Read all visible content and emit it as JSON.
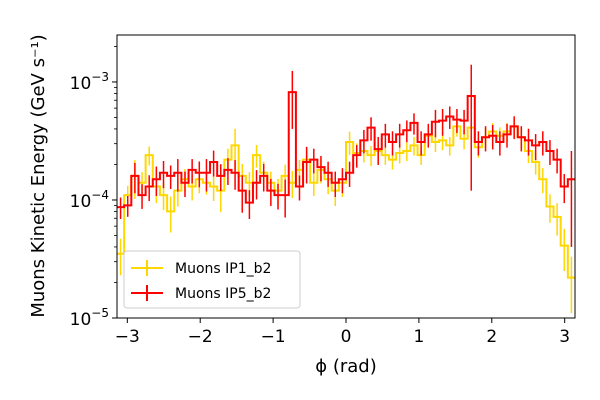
{
  "chart_data": {
    "type": "line",
    "xlabel": "ϕ (rad)",
    "ylabel": "Muons Kinetic Energy (GeV s⁻¹)",
    "y_scale": "log",
    "xlim": [
      -3.1416,
      3.1416
    ],
    "ylim": [
      1e-05,
      0.0025
    ],
    "x_ticks": [
      -3,
      -2,
      -1,
      0,
      1,
      2,
      3
    ],
    "x_tick_labels": [
      "−3",
      "−2",
      "−1",
      "0",
      "1",
      "2",
      "3"
    ],
    "y_ticks": [
      1e-05,
      0.0001,
      0.001
    ],
    "y_tick_labels": [
      {
        "base": "10",
        "exp": "−5"
      },
      {
        "base": "10",
        "exp": "−4"
      },
      {
        "base": "10",
        "exp": "−3"
      }
    ],
    "grid": false,
    "legend_position": "lower-left",
    "bins": 64,
    "series": [
      {
        "name": "Muons IP1_b2",
        "color": "#FFD700",
        "values": [
          3.5e-05,
          0.00011,
          0.00016,
          0.00014,
          0.00024,
          0.00013,
          0.00011,
          8e-05,
          0.00012,
          0.00015,
          0.00013,
          0.00015,
          0.00014,
          0.00013,
          0.00012,
          0.00022,
          0.00029,
          0.00016,
          0.00014,
          0.00024,
          0.00017,
          0.00014,
          0.00012,
          0.00016,
          0.00014,
          0.00018,
          0.00022,
          0.00014,
          0.00018,
          0.00015,
          0.00012,
          0.00014,
          0.00031,
          0.00025,
          0.00026,
          0.00024,
          0.00026,
          0.00024,
          0.00022,
          0.00025,
          0.00026,
          0.00029,
          0.00024,
          0.00035,
          0.00031,
          0.00032,
          0.00029,
          0.00042,
          0.00033,
          0.00041,
          0.00028,
          0.00034,
          0.00038,
          0.00035,
          0.00038,
          0.00042,
          0.00034,
          0.00026,
          0.00021,
          0.00015,
          8.8e-05,
          7.2e-05,
          4.1e-05,
          2.2e-05
        ],
        "errors": [
          1.2e-05,
          2.2e-05,
          5.8e-05,
          3.2e-05,
          4.4e-05,
          3.6e-05,
          2.8e-05,
          2.7e-05,
          3.2e-05,
          3.3e-05,
          3.1e-05,
          3.6e-05,
          2.9e-05,
          3.2e-05,
          4.1e-05,
          5.2e-05,
          0.00011,
          4.2e-05,
          3.2e-05,
          5.2e-05,
          4.1e-05,
          3.4e-05,
          3.1e-05,
          3.9e-05,
          3.6e-05,
          3.8e-05,
          4.2e-05,
          3.2e-05,
          4.2e-05,
          3.8e-05,
          3.1e-05,
          3.4e-05,
          6.9e-05,
          5.2e-05,
          5.2e-05,
          4.6e-05,
          4.6e-05,
          4.2e-05,
          3.9e-05,
          4.6e-05,
          4.6e-05,
          5.2e-05,
          4.2e-05,
          6.2e-05,
          5.5e-05,
          5.6e-05,
          5.2e-05,
          7.6e-05,
          6.2e-05,
          7.2e-05,
          5.2e-05,
          6.2e-05,
          6.8e-05,
          6.2e-05,
          6.8e-05,
          7.8e-05,
          6.6e-05,
          5.5e-05,
          4.6e-05,
          3.6e-05,
          2.4e-05,
          2.2e-05,
          1.6e-05,
          1.1e-05
        ]
      },
      {
        "name": "Muons IP5_b2",
        "color": "#FF0000",
        "values": [
          8.7e-05,
          9e-05,
          0.00016,
          0.00011,
          0.00013,
          0.00015,
          0.00017,
          0.00016,
          0.00017,
          0.00014,
          0.00018,
          0.00017,
          0.00017,
          0.00021,
          0.00016,
          0.00018,
          0.00017,
          0.00012,
          9.5e-05,
          0.00014,
          0.00016,
          0.00012,
          0.00011,
          0.00011,
          0.00082,
          0.00013,
          0.00021,
          0.00022,
          0.00019,
          0.00017,
          0.00014,
          0.00015,
          0.00017,
          0.00024,
          0.00032,
          0.00041,
          0.00027,
          0.00036,
          0.00031,
          0.00036,
          0.00039,
          0.00045,
          0.00031,
          0.00036,
          0.00046,
          0.00047,
          0.00051,
          0.00048,
          0.00047,
          0.00076,
          0.00031,
          0.00034,
          0.00035,
          0.00031,
          0.00036,
          0.00042,
          0.00034,
          0.00032,
          0.00029,
          0.00031,
          0.00026,
          0.00022,
          0.00013,
          0.00015
        ],
        "errors": [
          1.8e-05,
          1.8e-05,
          4.6e-05,
          2.6e-05,
          3.2e-05,
          4.2e-05,
          4.4e-05,
          3.6e-05,
          5.2e-05,
          3.4e-05,
          4.2e-05,
          4.2e-05,
          5.2e-05,
          5.2e-05,
          4.1e-05,
          4.6e-05,
          4.8e-05,
          4.2e-05,
          2.6e-05,
          3.9e-05,
          4.2e-05,
          3.1e-05,
          2.7e-05,
          3.9e-05,
          0.00042,
          3.1e-05,
          7.2e-05,
          5.2e-05,
          4.6e-05,
          4.1e-05,
          3.4e-05,
          3.6e-05,
          4.1e-05,
          5.2e-05,
          7.2e-05,
          9.2e-05,
          7.2e-05,
          8.2e-05,
          7.2e-05,
          8.2e-05,
          8.2e-05,
          9.2e-05,
          7.2e-05,
          8.2e-05,
          0.00012,
          0.00012,
          0.00011,
          0.00011,
          0.00011,
          0.00064,
          7.2e-05,
          8.2e-05,
          8.2e-05,
          7.2e-05,
          8.2e-05,
          9.2e-05,
          8.2e-05,
          8.2e-05,
          7.2e-05,
          7.2e-05,
          6.2e-05,
          5.2e-05,
          3.6e-05,
          0.00011
        ]
      }
    ]
  }
}
